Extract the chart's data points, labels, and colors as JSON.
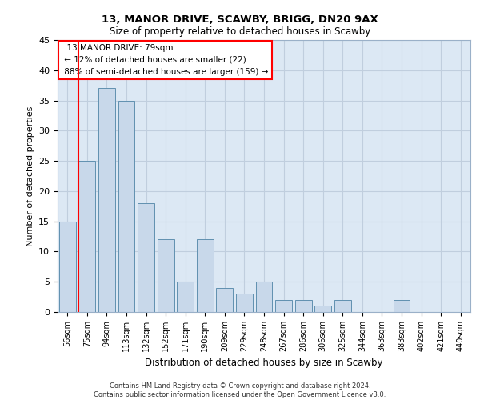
{
  "title1": "13, MANOR DRIVE, SCAWBY, BRIGG, DN20 9AX",
  "title2": "Size of property relative to detached houses in Scawby",
  "xlabel": "Distribution of detached houses by size in Scawby",
  "ylabel": "Number of detached properties",
  "footnote": "Contains HM Land Registry data © Crown copyright and database right 2024.\nContains public sector information licensed under the Open Government Licence v3.0.",
  "categories": [
    "56sqm",
    "75sqm",
    "94sqm",
    "113sqm",
    "132sqm",
    "152sqm",
    "171sqm",
    "190sqm",
    "209sqm",
    "229sqm",
    "248sqm",
    "267sqm",
    "286sqm",
    "306sqm",
    "325sqm",
    "344sqm",
    "363sqm",
    "383sqm",
    "402sqm",
    "421sqm",
    "440sqm"
  ],
  "values": [
    15,
    25,
    37,
    35,
    18,
    12,
    5,
    12,
    4,
    3,
    5,
    2,
    2,
    1,
    2,
    0,
    0,
    2,
    0,
    0,
    0
  ],
  "bar_color": "#c8d8ea",
  "bar_edge_color": "#6090b0",
  "grid_color": "#c0cede",
  "bg_color": "#dce8f4",
  "red_line_index": 1,
  "annotation_text": "  13 MANOR DRIVE: 79sqm  \n ← 12% of detached houses are smaller (22)\n 88% of semi-detached houses are larger (159) →",
  "annotation_box_color": "white",
  "annotation_box_edge_color": "red",
  "ylim": [
    0,
    45
  ],
  "yticks": [
    0,
    5,
    10,
    15,
    20,
    25,
    30,
    35,
    40,
    45
  ]
}
